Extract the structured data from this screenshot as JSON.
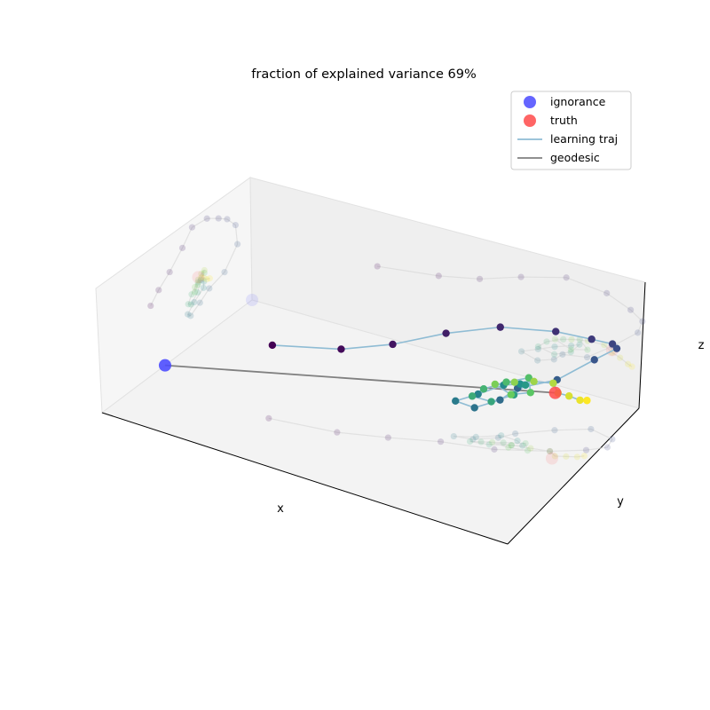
{
  "chart_data": {
    "type": "scatter",
    "title": "fraction of explained variance 69%",
    "xlabel": "x",
    "ylabel": "y",
    "zlabel": "z",
    "legend": {
      "placement": "top-right",
      "entries": [
        {
          "label": "ignorance",
          "kind": "marker",
          "color": "#2b2bff"
        },
        {
          "label": "truth",
          "kind": "marker",
          "color": "#ff2a2a"
        },
        {
          "label": "learning traj",
          "kind": "line",
          "color": "#8fbcd4"
        },
        {
          "label": "geodesic",
          "kind": "line",
          "color": "#808080"
        }
      ]
    },
    "colors": {
      "ignorance": "#4a4aff",
      "truth": "#ff4a4a",
      "traj_line": "#8fbcd4",
      "geodesic": "#808080",
      "pane": "#f2f2f2",
      "shadow": "#d9d9d9",
      "colormap": [
        "#440154",
        "#3b528b",
        "#21918c",
        "#5ec962",
        "#fde725"
      ]
    },
    "ignorance": [
      0.0,
      0.42,
      0.0
    ],
    "truth": [
      0.88,
      0.62,
      0.52
    ],
    "trajectory": [
      [
        0.3,
        0.3,
        0.58
      ],
      [
        0.45,
        0.35,
        0.66
      ],
      [
        0.55,
        0.42,
        0.74
      ],
      [
        0.65,
        0.5,
        0.86
      ],
      [
        0.76,
        0.56,
        0.97
      ],
      [
        0.86,
        0.66,
        0.95
      ],
      [
        0.92,
        0.74,
        0.88
      ],
      [
        0.95,
        0.8,
        0.82
      ],
      [
        0.94,
        0.86,
        0.72
      ],
      [
        0.88,
        0.88,
        0.55
      ],
      [
        0.82,
        0.8,
        0.4
      ],
      [
        0.76,
        0.7,
        0.36
      ],
      [
        0.74,
        0.64,
        0.3
      ],
      [
        0.7,
        0.58,
        0.25
      ],
      [
        0.66,
        0.56,
        0.28
      ],
      [
        0.7,
        0.6,
        0.34
      ],
      [
        0.74,
        0.66,
        0.4
      ],
      [
        0.78,
        0.66,
        0.45
      ],
      [
        0.8,
        0.64,
        0.48
      ],
      [
        0.78,
        0.62,
        0.4
      ],
      [
        0.74,
        0.58,
        0.34
      ],
      [
        0.7,
        0.56,
        0.36
      ],
      [
        0.72,
        0.58,
        0.42
      ],
      [
        0.76,
        0.62,
        0.48
      ],
      [
        0.8,
        0.66,
        0.52
      ],
      [
        0.82,
        0.62,
        0.46
      ],
      [
        0.78,
        0.6,
        0.42
      ],
      [
        0.74,
        0.6,
        0.46
      ],
      [
        0.78,
        0.62,
        0.5
      ],
      [
        0.82,
        0.64,
        0.53
      ],
      [
        0.86,
        0.66,
        0.54
      ],
      [
        0.88,
        0.64,
        0.5
      ],
      [
        0.9,
        0.66,
        0.48
      ],
      [
        0.92,
        0.68,
        0.45
      ],
      [
        0.93,
        0.7,
        0.44
      ]
    ]
  }
}
